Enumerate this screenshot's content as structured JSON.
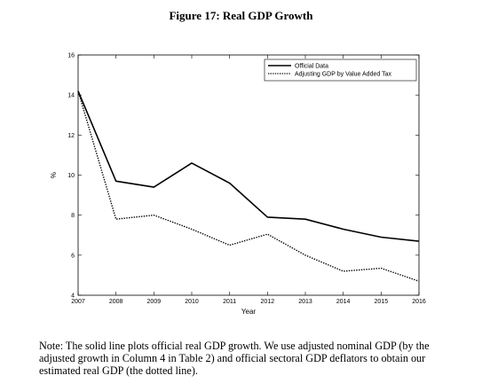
{
  "figure": {
    "title": "Figure 17: Real GDP Growth"
  },
  "note": {
    "text": "Note: The solid line plots official real GDP growth. We use adjusted nominal GDP (by the adjusted growth in Column 4 in Table 2) and official sectoral GDP deflators to obtain our estimated real GDP (the dotted line)."
  },
  "chart_data": {
    "type": "line",
    "title": "",
    "xlabel": "Year",
    "ylabel": "%",
    "x": [
      2007,
      2008,
      2009,
      2010,
      2011,
      2012,
      2013,
      2014,
      2015,
      2016
    ],
    "xlim": [
      2007,
      2016
    ],
    "ylim": [
      4,
      16
    ],
    "x_ticks": [
      "2007",
      "2008",
      "2009",
      "2010",
      "2011",
      "2012",
      "2013",
      "2014",
      "2015",
      "2016"
    ],
    "y_ticks": [
      "4",
      "6",
      "8",
      "10",
      "12",
      "14",
      "16"
    ],
    "grid": false,
    "legend_position": "top-right",
    "series": [
      {
        "name": "Official Data",
        "style": "solid",
        "color": "#000000",
        "values": [
          14.2,
          9.7,
          9.4,
          10.6,
          9.6,
          7.9,
          7.8,
          7.3,
          6.9,
          6.7
        ]
      },
      {
        "name": "Adjusting GDP by Value Added Tax",
        "style": "dotted",
        "color": "#000000",
        "values": [
          14.2,
          7.8,
          8.0,
          7.3,
          6.5,
          7.05,
          6.0,
          5.2,
          5.35,
          4.7
        ]
      }
    ]
  }
}
